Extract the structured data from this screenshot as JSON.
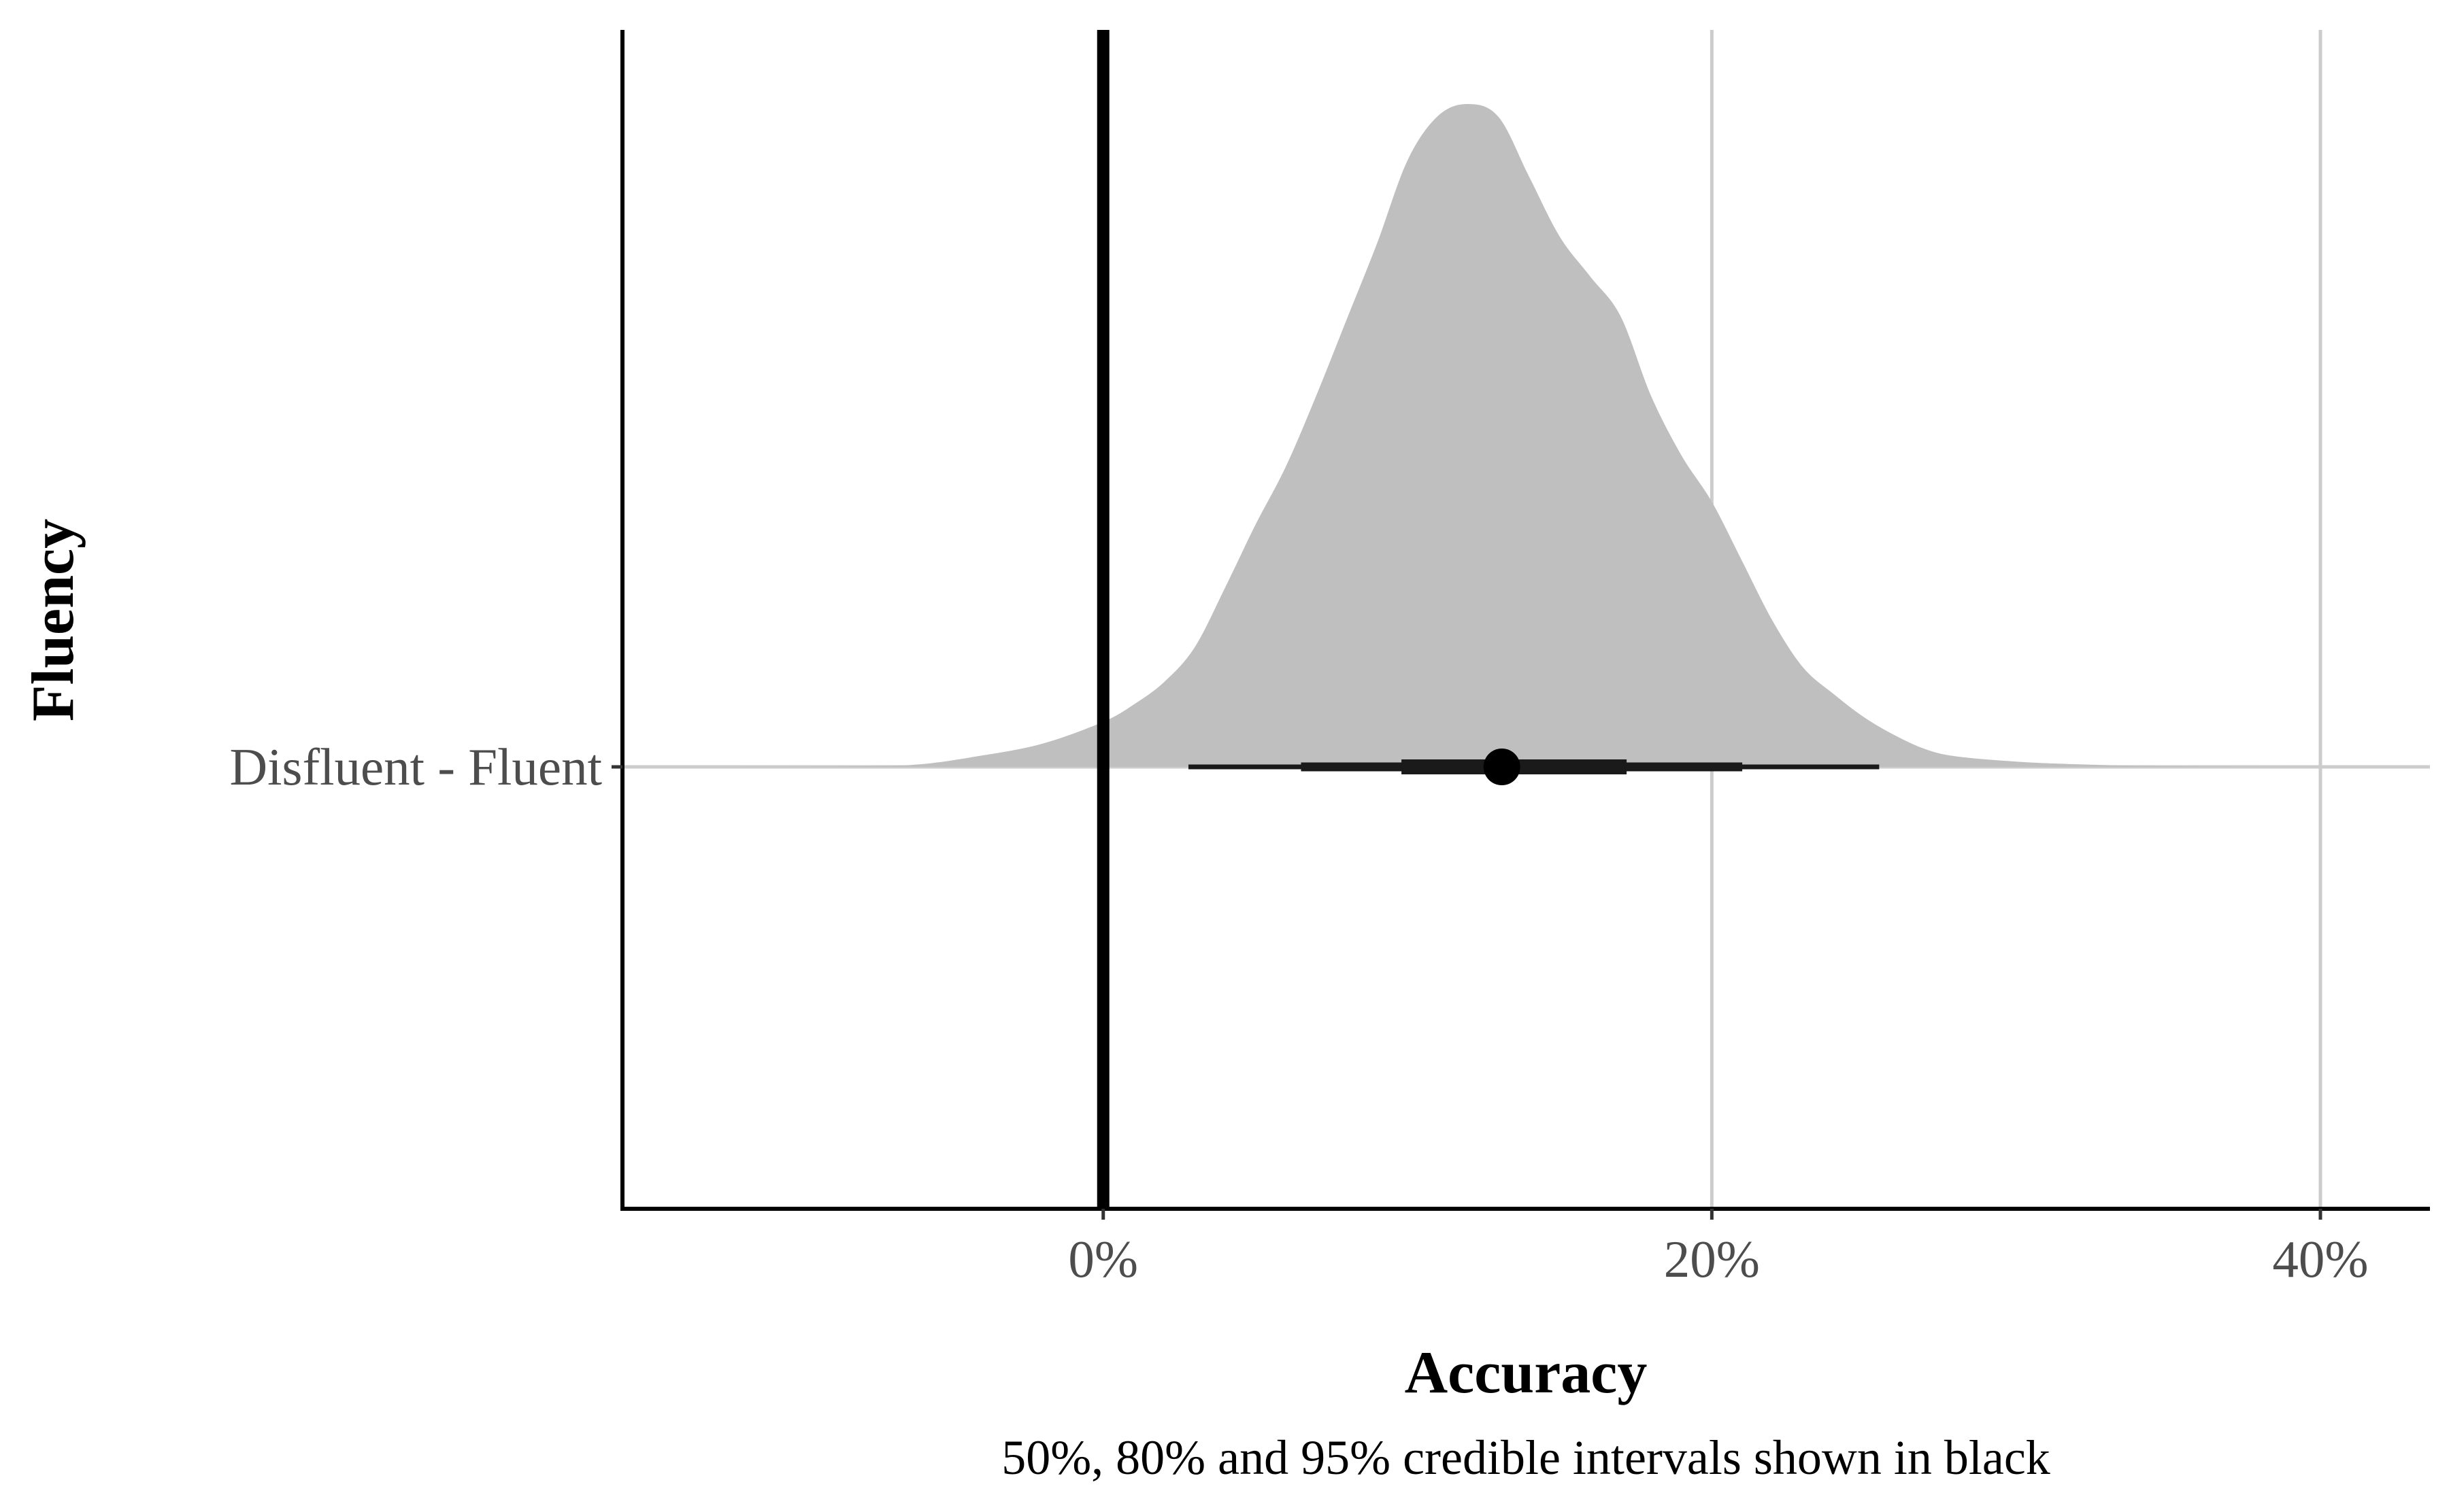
{
  "chart_data": {
    "type": "halfeye",
    "xlabel": "Accuracy",
    "ylabel": "Fluency",
    "caption": "50%, 80% and 95% credible intervals shown in black",
    "categories": [
      "Disfluent - Fluent"
    ],
    "x_ticks": [
      {
        "value": 0,
        "label": "0%"
      },
      {
        "value": 20,
        "label": "20%"
      },
      {
        "value": 40,
        "label": "40%"
      }
    ],
    "xlim": [
      -15.8,
      43.6
    ],
    "reference_line": 0,
    "grid": "major x and y",
    "colors": {
      "density": "#bfbfbf",
      "interval": "#1a1a1a",
      "grid": "#cccccc",
      "axis": "#000000"
    },
    "density": [
      [
        -12,
        0.0
      ],
      [
        -8,
        0.001
      ],
      [
        -6,
        0.004
      ],
      [
        -4,
        0.017
      ],
      [
        -2,
        0.035
      ],
      [
        0,
        0.068
      ],
      [
        1,
        0.094
      ],
      [
        2,
        0.128
      ],
      [
        3,
        0.18
      ],
      [
        4,
        0.27
      ],
      [
        5,
        0.365
      ],
      [
        6,
        0.453
      ],
      [
        7,
        0.56
      ],
      [
        8,
        0.675
      ],
      [
        9,
        0.79
      ],
      [
        10,
        0.915
      ],
      [
        11,
        0.982
      ],
      [
        12,
        1.0
      ],
      [
        13,
        0.98
      ],
      [
        14,
        0.89
      ],
      [
        15,
        0.8
      ],
      [
        16,
        0.74
      ],
      [
        17,
        0.68
      ],
      [
        18,
        0.56
      ],
      [
        19,
        0.47
      ],
      [
        20,
        0.4
      ],
      [
        21,
        0.31
      ],
      [
        22,
        0.22
      ],
      [
        23,
        0.15
      ],
      [
        24,
        0.11
      ],
      [
        25,
        0.075
      ],
      [
        26,
        0.048
      ],
      [
        27,
        0.027
      ],
      [
        28,
        0.016
      ],
      [
        30,
        0.008
      ],
      [
        32,
        0.004
      ],
      [
        35,
        0.001
      ],
      [
        40,
        0.0
      ]
    ],
    "point_estimate": 13.1,
    "intervals": [
      {
        "level": "50%",
        "lower": 9.8,
        "upper": 17.2
      },
      {
        "level": "80%",
        "lower": 6.5,
        "upper": 21.0
      },
      {
        "level": "95%",
        "lower": 2.8,
        "upper": 25.5
      }
    ]
  }
}
